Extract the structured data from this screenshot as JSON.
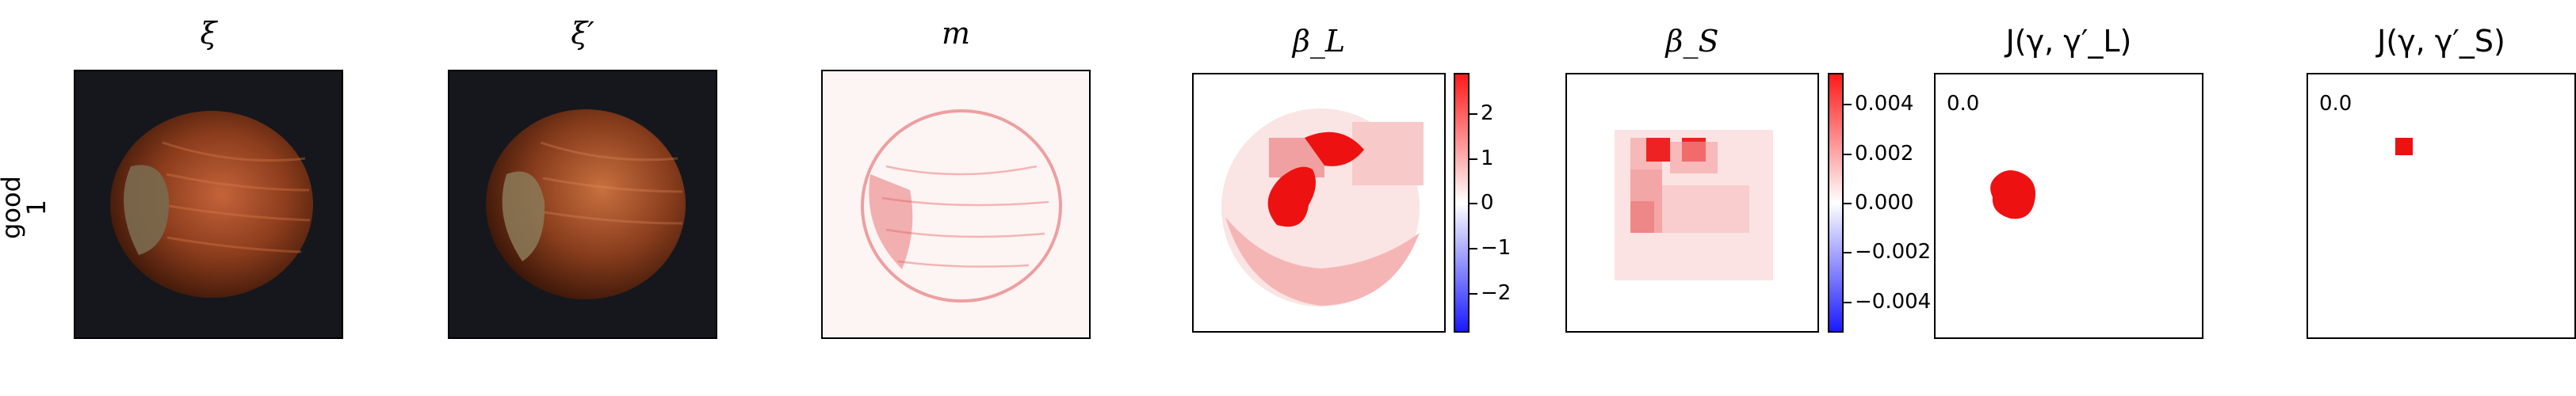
{
  "row_label": {
    "line1": "good",
    "line2": "1"
  },
  "panels": {
    "xi": {
      "title": "ξ"
    },
    "xi_prime": {
      "title": "ξ′"
    },
    "m": {
      "title": "m"
    },
    "beta_l": {
      "title": "β_L"
    },
    "beta_s": {
      "title": "β_S"
    },
    "j_l": {
      "title": "J(γ, γ′_L)",
      "annotation": "0.0"
    },
    "j_s": {
      "title": "J(γ, γ′_S)",
      "annotation": "0.0"
    }
  },
  "colorbars": {
    "beta_l": {
      "ticks": [
        "2",
        "1",
        "0",
        "−1",
        "−2"
      ]
    },
    "beta_s": {
      "ticks": [
        "0.004",
        "0.002",
        "0.000",
        "−0.002",
        "−0.004"
      ]
    }
  },
  "colors": {
    "red": "#ff1a1a",
    "blue": "#1a1aff",
    "dark_bg": "#15171c"
  }
}
